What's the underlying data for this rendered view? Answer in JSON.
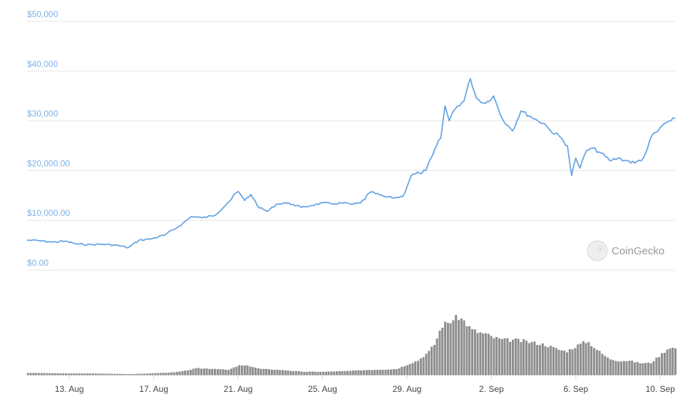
{
  "chart_data": {
    "type": "line",
    "y_axis": {
      "ticks": [
        "$0.00",
        "$10,000.00",
        "$20,000.00",
        "$30,000",
        "$40,000",
        "$50,000"
      ],
      "tick_values": [
        0,
        10000,
        20000,
        30000,
        40000,
        50000
      ],
      "ylim": [
        0,
        50000
      ]
    },
    "x_axis": {
      "ticks": [
        "13. Aug",
        "17. Aug",
        "21. Aug",
        "25. Aug",
        "29. Aug",
        "2. Sep",
        "6. Sep",
        "10. Sep"
      ],
      "tick_days": [
        2,
        6,
        10,
        14,
        18,
        22,
        26,
        30
      ],
      "xlim": [
        0.0,
        30.7
      ]
    },
    "grid": true,
    "price_series": {
      "x": [
        0.0,
        0.6,
        1.2,
        1.8,
        2.4,
        3.0,
        3.6,
        4.2,
        4.8,
        5.3,
        5.8,
        6.5,
        7.2,
        7.8,
        8.3,
        8.9,
        9.5,
        10.0,
        10.3,
        10.6,
        11.0,
        11.4,
        11.8,
        12.2,
        12.6,
        13.0,
        13.5,
        14.0,
        14.5,
        15.0,
        15.4,
        15.8,
        16.3,
        16.9,
        17.4,
        17.8,
        18.2,
        18.6,
        18.9,
        19.2,
        19.4,
        19.6,
        19.8,
        20.0,
        20.2,
        20.4,
        20.7,
        21.0,
        21.3,
        21.7,
        22.1,
        22.5,
        22.8,
        23.0,
        23.4,
        23.8,
        24.2,
        24.5,
        24.8,
        25.2,
        25.6,
        25.8,
        26.0,
        26.2,
        26.5,
        26.8,
        27.2,
        27.6,
        28.0,
        28.4,
        28.8,
        29.2,
        29.4,
        29.6,
        29.9,
        30.2,
        30.5,
        30.7
      ],
      "y": [
        6000,
        5900,
        5600,
        5800,
        5200,
        5100,
        5200,
        5000,
        4500,
        6000,
        6200,
        7000,
        8800,
        10800,
        10500,
        11000,
        13500,
        15800,
        14000,
        15200,
        12500,
        11800,
        13200,
        13500,
        13200,
        12600,
        13000,
        13500,
        13300,
        13500,
        13200,
        13500,
        15700,
        14800,
        14500,
        14800,
        19000,
        19500,
        20000,
        23000,
        25000,
        26500,
        33000,
        30000,
        32000,
        33000,
        34000,
        38500,
        34500,
        33500,
        35000,
        30500,
        29000,
        28000,
        32000,
        31000,
        30000,
        29500,
        28000,
        27000,
        25000,
        19000,
        22500,
        20500,
        24000,
        24500,
        23500,
        22000,
        22500,
        22000,
        21500,
        22500,
        24500,
        27000,
        28000,
        29500,
        30000,
        30500
      ]
    },
    "volume_series": {
      "x": [
        0.0,
        1.0,
        2.0,
        3.0,
        4.0,
        5.0,
        6.0,
        7.0,
        7.5,
        8.0,
        9.0,
        9.5,
        10.0,
        10.5,
        11.0,
        12.0,
        13.0,
        14.0,
        15.0,
        16.0,
        17.0,
        17.5,
        18.0,
        18.5,
        19.0,
        19.3,
        19.6,
        20.0,
        20.4,
        20.7,
        21.0,
        21.3,
        21.7,
        22.0,
        22.5,
        23.0,
        23.5,
        24.0,
        24.5,
        25.0,
        25.5,
        26.0,
        26.5,
        27.0,
        27.5,
        28.0,
        28.5,
        29.0,
        29.5,
        30.0,
        30.4,
        30.7
      ],
      "y": [
        0.03,
        0.025,
        0.02,
        0.02,
        0.015,
        0.01,
        0.025,
        0.04,
        0.07,
        0.11,
        0.1,
        0.08,
        0.16,
        0.15,
        0.1,
        0.08,
        0.05,
        0.05,
        0.06,
        0.08,
        0.09,
        0.1,
        0.18,
        0.25,
        0.4,
        0.55,
        0.85,
        0.92,
        1.0,
        0.92,
        0.78,
        0.74,
        0.7,
        0.65,
        0.6,
        0.6,
        0.58,
        0.55,
        0.52,
        0.45,
        0.4,
        0.5,
        0.58,
        0.42,
        0.28,
        0.24,
        0.24,
        0.2,
        0.2,
        0.35,
        0.48,
        0.45
      ]
    },
    "colors": {
      "price_line": "#6aa6e4",
      "tick_label_y": "#7db3e8",
      "tick_label_x": "#444444",
      "grid": "#e6e6e6",
      "volume": "#8f8f8f",
      "volume_edge": "#6e6e6e"
    },
    "watermark": {
      "text": "CoinGecko",
      "icon": "gecko-logo-icon"
    }
  }
}
